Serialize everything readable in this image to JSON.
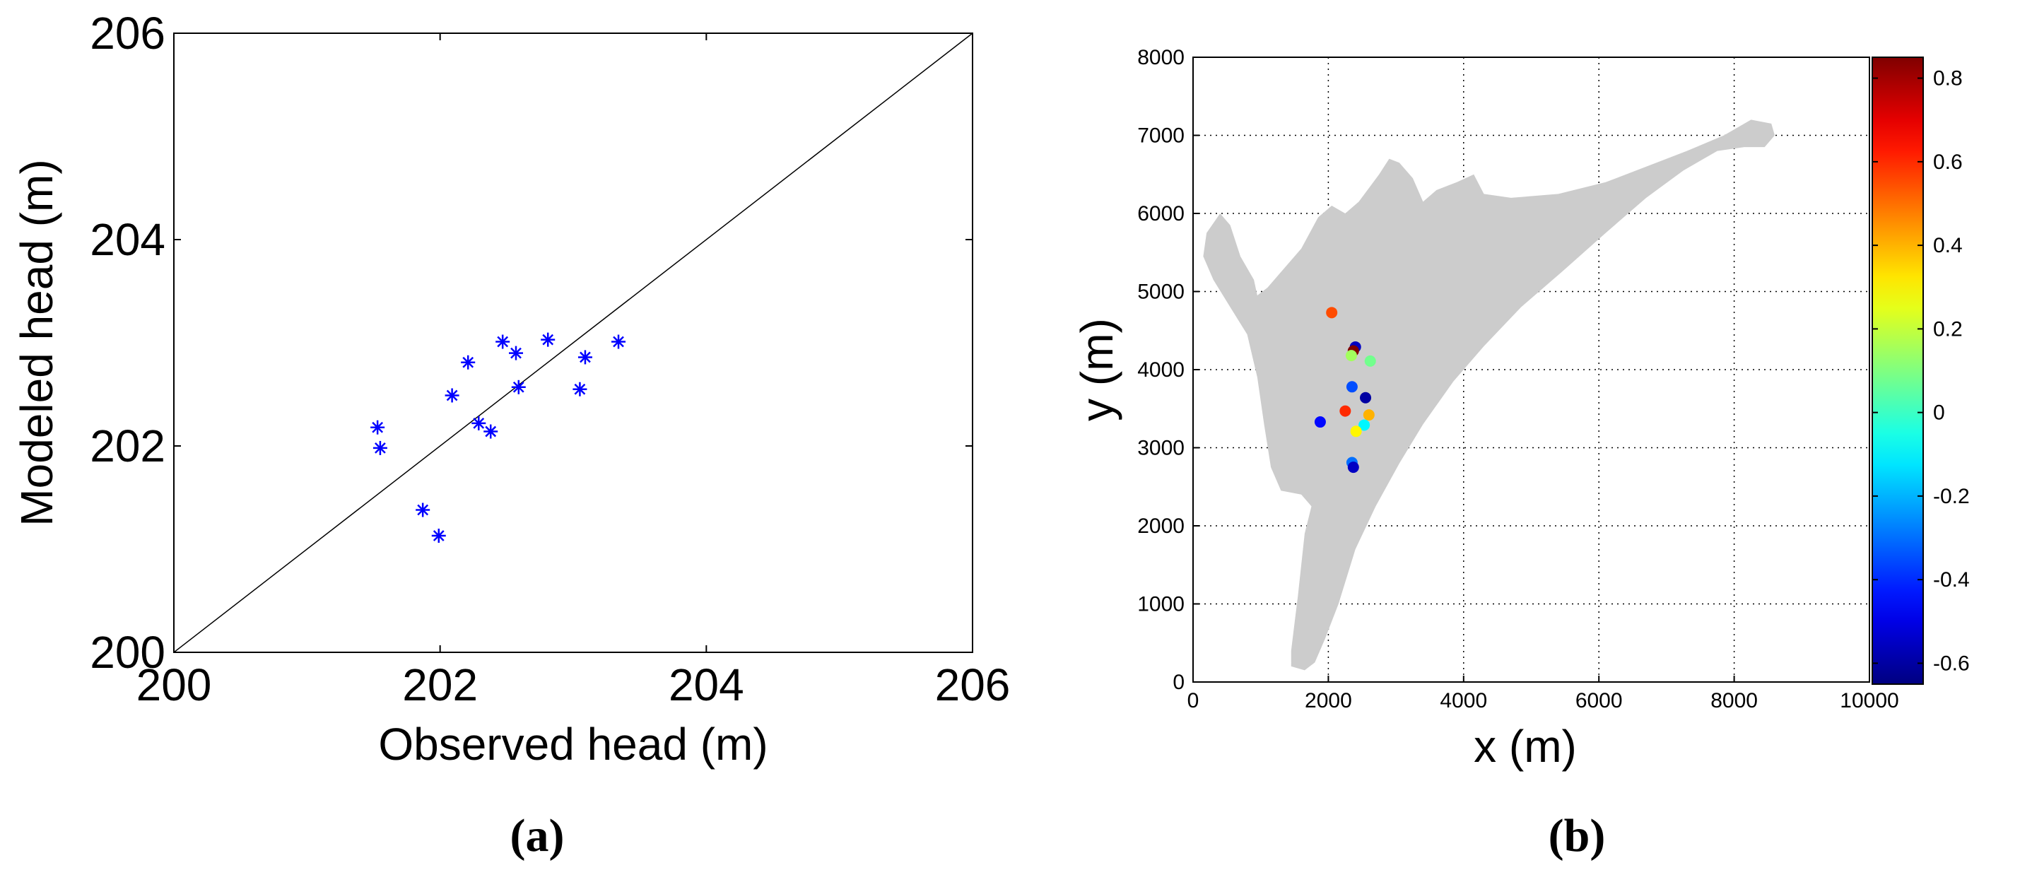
{
  "chart_data": [
    {
      "type": "scatter",
      "panel_label": "(a)",
      "xlabel": "Observed head (m)",
      "ylabel": "Modeled head (m)",
      "xlim": [
        200,
        206
      ],
      "ylim": [
        200,
        206
      ],
      "xticks": [
        200,
        202,
        204,
        206
      ],
      "yticks": [
        200,
        202,
        204,
        206
      ],
      "grid": false,
      "marker": "asterisk",
      "marker_color": "#0000ff",
      "reference_line": {
        "from": [
          200,
          200
        ],
        "to": [
          206,
          206
        ],
        "color": "#000000"
      },
      "points": [
        {
          "x": 201.53,
          "y": 202.18
        },
        {
          "x": 201.55,
          "y": 201.98
        },
        {
          "x": 201.87,
          "y": 201.38
        },
        {
          "x": 201.99,
          "y": 201.13
        },
        {
          "x": 202.09,
          "y": 202.49
        },
        {
          "x": 202.21,
          "y": 202.81
        },
        {
          "x": 202.29,
          "y": 202.22
        },
        {
          "x": 202.38,
          "y": 202.14
        },
        {
          "x": 202.47,
          "y": 203.01
        },
        {
          "x": 202.57,
          "y": 202.9
        },
        {
          "x": 202.59,
          "y": 202.57
        },
        {
          "x": 202.81,
          "y": 203.03
        },
        {
          "x": 203.05,
          "y": 202.55
        },
        {
          "x": 203.09,
          "y": 202.86
        },
        {
          "x": 203.34,
          "y": 203.01
        }
      ]
    },
    {
      "type": "scatter",
      "panel_label": "(b)",
      "xlabel": "x (m)",
      "ylabel": "y (m)",
      "xlim": [
        0,
        10000
      ],
      "ylim": [
        0,
        8000
      ],
      "xticks": [
        0,
        2000,
        4000,
        6000,
        8000,
        10000
      ],
      "yticks": [
        0,
        1000,
        2000,
        3000,
        4000,
        5000,
        6000,
        7000,
        8000
      ],
      "grid": true,
      "grid_style": "dotted",
      "domain_fill": "#cccccc",
      "domain_outline": [
        [
          1450,
          400
        ],
        [
          1450,
          200
        ],
        [
          1650,
          150
        ],
        [
          1800,
          250
        ],
        [
          1950,
          550
        ],
        [
          2150,
          1000
        ],
        [
          2400,
          1700
        ],
        [
          2700,
          2250
        ],
        [
          3050,
          2800
        ],
        [
          3400,
          3300
        ],
        [
          3850,
          3850
        ],
        [
          4300,
          4300
        ],
        [
          4850,
          4800
        ],
        [
          5450,
          5250
        ],
        [
          6100,
          5750
        ],
        [
          6700,
          6200
        ],
        [
          7250,
          6550
        ],
        [
          7750,
          6800
        ],
        [
          8150,
          6850
        ],
        [
          8450,
          6850
        ],
        [
          8600,
          7000
        ],
        [
          8550,
          7150
        ],
        [
          8250,
          7200
        ],
        [
          7850,
          7000
        ],
        [
          7300,
          6800
        ],
        [
          6700,
          6600
        ],
        [
          6100,
          6400
        ],
        [
          5400,
          6250
        ],
        [
          4700,
          6200
        ],
        [
          4300,
          6250
        ],
        [
          4150,
          6500
        ],
        [
          3900,
          6400
        ],
        [
          3600,
          6300
        ],
        [
          3400,
          6150
        ],
        [
          3250,
          6450
        ],
        [
          3050,
          6650
        ],
        [
          2900,
          6700
        ],
        [
          2750,
          6500
        ],
        [
          2450,
          6150
        ],
        [
          2250,
          6000
        ],
        [
          2050,
          6100
        ],
        [
          1850,
          5950
        ],
        [
          1600,
          5550
        ],
        [
          1300,
          5250
        ],
        [
          1100,
          5050
        ],
        [
          950,
          4950
        ],
        [
          900,
          5150
        ],
        [
          700,
          5450
        ],
        [
          550,
          5850
        ],
        [
          400,
          6000
        ],
        [
          200,
          5750
        ],
        [
          150,
          5450
        ],
        [
          300,
          5150
        ],
        [
          550,
          4800
        ],
        [
          800,
          4450
        ],
        [
          950,
          3900
        ],
        [
          1050,
          3300
        ],
        [
          1150,
          2750
        ],
        [
          1300,
          2450
        ],
        [
          1600,
          2400
        ],
        [
          1750,
          2250
        ],
        [
          1650,
          1900
        ],
        [
          1600,
          1500
        ],
        [
          1550,
          1100
        ],
        [
          1500,
          750
        ]
      ],
      "points": [
        {
          "x": 2050,
          "y": 4730,
          "value": 0.55
        },
        {
          "x": 2400,
          "y": 4290,
          "value": -0.55
        },
        {
          "x": 2370,
          "y": 4240,
          "value": 0.85
        },
        {
          "x": 2340,
          "y": 4180,
          "value": 0.15
        },
        {
          "x": 2620,
          "y": 4110,
          "value": 0.08
        },
        {
          "x": 2350,
          "y": 3780,
          "value": -0.35
        },
        {
          "x": 2550,
          "y": 3640,
          "value": -0.6
        },
        {
          "x": 2250,
          "y": 3470,
          "value": 0.6
        },
        {
          "x": 2600,
          "y": 3420,
          "value": 0.4
        },
        {
          "x": 1880,
          "y": 3330,
          "value": -0.45
        },
        {
          "x": 2530,
          "y": 3290,
          "value": -0.1
        },
        {
          "x": 2410,
          "y": 3210,
          "value": 0.3
        },
        {
          "x": 2350,
          "y": 2810,
          "value": -0.3
        },
        {
          "x": 2370,
          "y": 2750,
          "value": -0.55
        }
      ],
      "colorbar": {
        "colormap": "jet",
        "range": [
          -0.65,
          0.85
        ],
        "ticks": [
          -0.6,
          -0.4,
          -0.2,
          0,
          0.2,
          0.4,
          0.6,
          0.8
        ],
        "tick_labels": [
          "-0.6",
          "-0.4",
          "-0.2",
          "0",
          "0.2",
          "0.4",
          "0.6",
          "0.8"
        ]
      }
    }
  ]
}
